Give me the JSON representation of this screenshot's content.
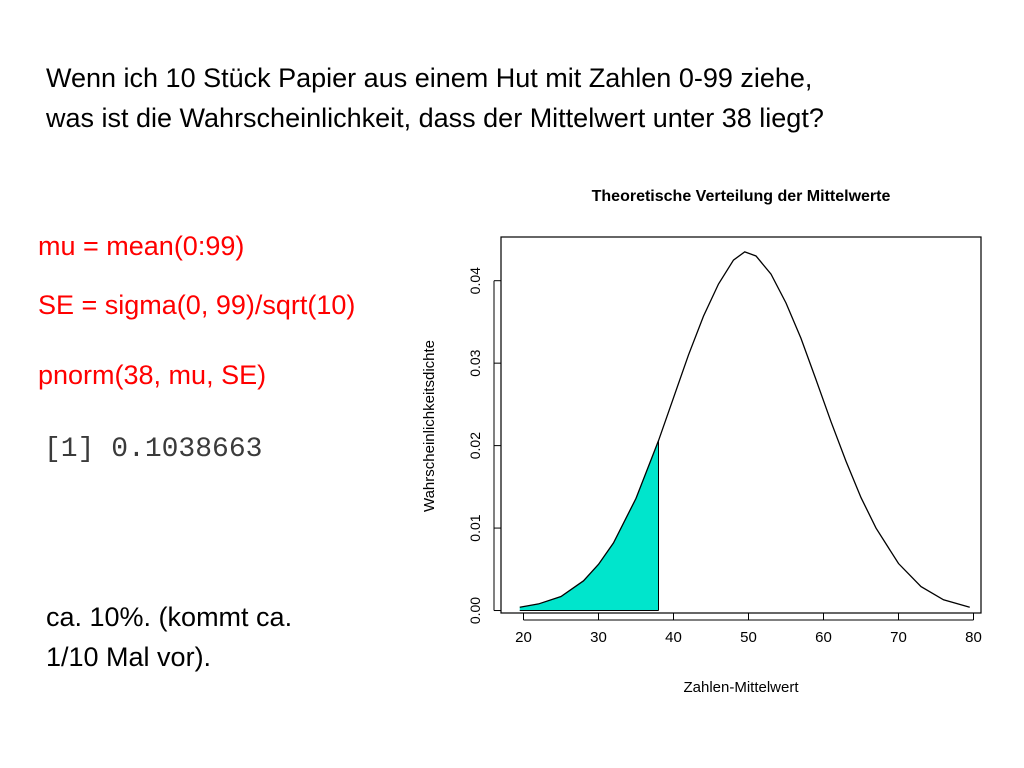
{
  "question": {
    "line1": "Wenn ich 10 Stück Papier aus einem Hut mit Zahlen 0-99 ziehe,",
    "line2": "was ist die Wahrscheinlichkeit, dass der Mittelwert unter 38 liegt?"
  },
  "code": {
    "line1": "mu = mean(0:99)",
    "line2": "SE = sigma(0, 99)/sqrt(10)",
    "line3": "pnorm(38, mu, SE)"
  },
  "result": "[1] 0.1038663",
  "conclusion": {
    "line1": "ca. 10%. (kommt ca.",
    "line2": "1/10 Mal vor)."
  },
  "colors": {
    "code": "#ff0000",
    "fill": "#00e5cc",
    "curve": "#000000"
  },
  "chart_data": {
    "type": "area",
    "title": "Theoretische Verteilung der Mittelwerte",
    "xlabel": "Zahlen-Mittelwert",
    "ylabel": "Wahrscheinlichkeitsdichte",
    "xlim": [
      17,
      81
    ],
    "ylim": [
      -0.0003,
      0.0453
    ],
    "x_ticks": [
      20,
      30,
      40,
      50,
      60,
      70,
      80
    ],
    "x_tick_labels": [
      "20",
      "30",
      "40",
      "50",
      "60",
      "70",
      "80"
    ],
    "y_ticks": [
      0.0,
      0.01,
      0.02,
      0.03,
      0.04
    ],
    "y_tick_labels": [
      "0.00",
      "0.01",
      "0.02",
      "0.03",
      "0.04"
    ],
    "series": [
      {
        "x": [
          19.5,
          22,
          25,
          28,
          30,
          32,
          35,
          38,
          40,
          42,
          44,
          46,
          48,
          49.5,
          51,
          53,
          55,
          57,
          59,
          61,
          63,
          65,
          67,
          70,
          73,
          76,
          79.5
        ],
        "y": [
          0.0004,
          0.0008,
          0.0017,
          0.0036,
          0.0056,
          0.0082,
          0.0136,
          0.0206,
          0.0258,
          0.031,
          0.0357,
          0.0396,
          0.0425,
          0.0435,
          0.043,
          0.0408,
          0.0373,
          0.033,
          0.028,
          0.0229,
          0.0181,
          0.0137,
          0.01,
          0.0057,
          0.0029,
          0.0013,
          0.0004
        ]
      }
    ],
    "shaded_region": {
      "x_from": 19.5,
      "x_to": 38,
      "label": ""
    },
    "grid": false,
    "legend": "none"
  }
}
